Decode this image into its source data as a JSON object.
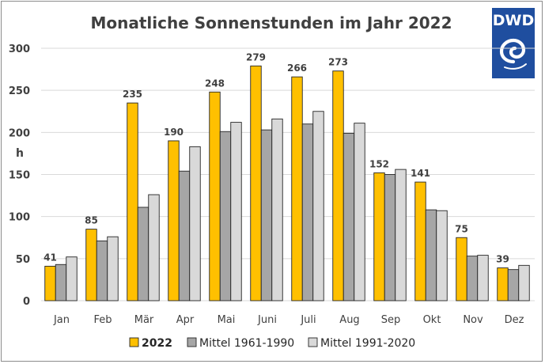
{
  "logo": {
    "text": "DWD",
    "background": "#1f4e9f",
    "foreground": "#ffffff"
  },
  "chart_data": {
    "type": "bar",
    "title": "Monatliche Sonnenstunden im Jahr 2022",
    "ylabel": "h",
    "xlabel": "",
    "ylim": [
      0,
      300
    ],
    "yticks": [
      0,
      50,
      100,
      150,
      200,
      250,
      300
    ],
    "grid": true,
    "legend_position": "bottom",
    "categories": [
      "Jan",
      "Feb",
      "Mär",
      "Apr",
      "Mai",
      "Juni",
      "Juli",
      "Aug",
      "Sep",
      "Okt",
      "Nov",
      "Dez"
    ],
    "series": [
      {
        "name": "2022",
        "color": "#ffc000",
        "values": [
          41,
          85,
          235,
          190,
          248,
          279,
          266,
          273,
          152,
          141,
          75,
          39
        ],
        "labeled": true
      },
      {
        "name": "Mittel 1961-1990",
        "color": "#a6a6a6",
        "values": [
          43,
          71,
          111,
          154,
          201,
          203,
          210,
          199,
          150,
          108,
          53,
          37
        ],
        "labeled": false
      },
      {
        "name": "Mittel 1991-2020",
        "color": "#d9d9d9",
        "values": [
          52,
          76,
          126,
          183,
          212,
          216,
          225,
          211,
          156,
          107,
          54,
          42
        ],
        "labeled": false
      }
    ]
  }
}
